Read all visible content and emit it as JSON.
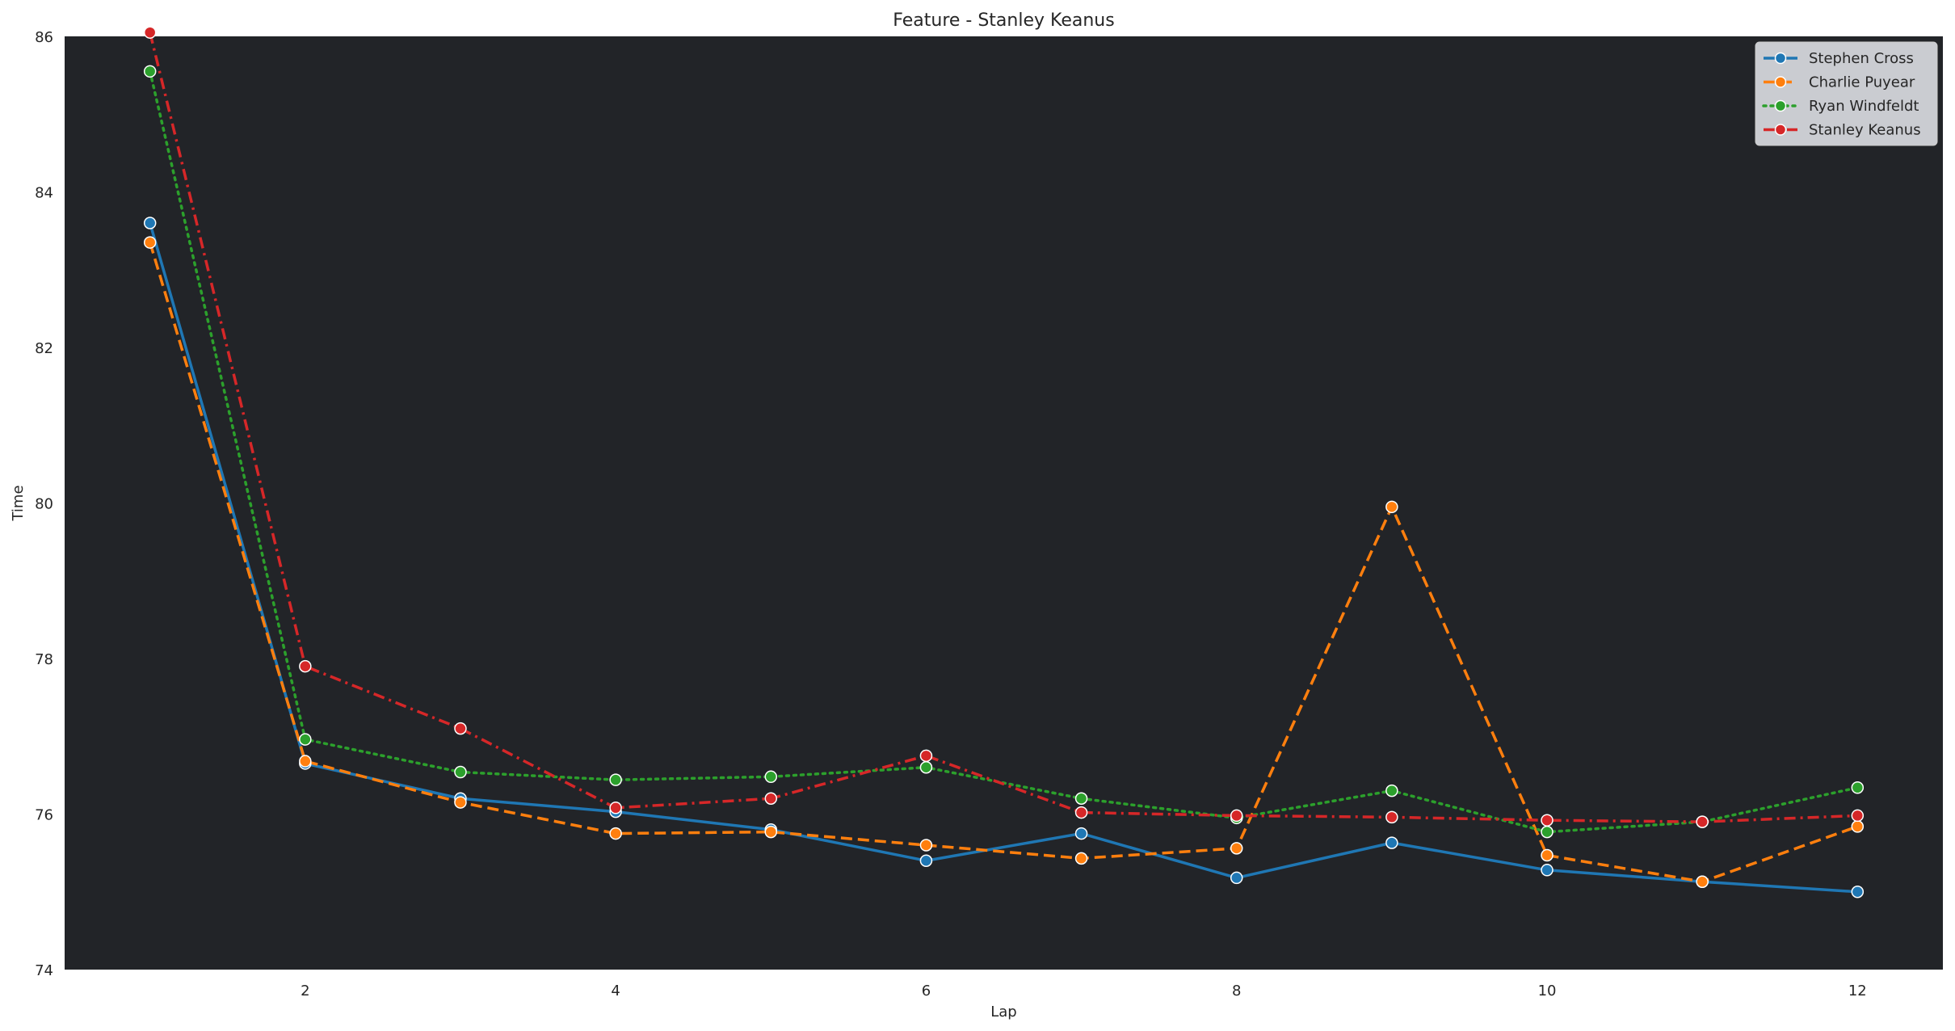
{
  "chart_data": {
    "type": "line",
    "title": "Feature - Stanley Keanus",
    "xlabel": "Lap",
    "ylabel": "Time",
    "xlim": [
      0.45,
      12.55
    ],
    "ylim": [
      74,
      86
    ],
    "xticks": [
      2,
      4,
      6,
      8,
      10,
      12
    ],
    "yticks": [
      74,
      76,
      78,
      80,
      82,
      84,
      86
    ],
    "grid": false,
    "legend_position": "top-right",
    "plot_background": "#222428",
    "x": [
      1,
      2,
      3,
      4,
      5,
      6,
      7,
      8,
      9,
      10,
      11,
      12
    ],
    "series": [
      {
        "name": "Stephen Cross",
        "color": "#1f77b4",
        "dash": "solid",
        "values": [
          83.6,
          76.65,
          76.2,
          76.03,
          75.8,
          75.4,
          75.75,
          75.18,
          75.63,
          75.28,
          75.13,
          75.0
        ]
      },
      {
        "name": "Charlie Puyear",
        "color": "#ff7f0e",
        "dash": "dashed",
        "values": [
          83.35,
          76.68,
          76.15,
          75.75,
          75.77,
          75.6,
          75.43,
          75.56,
          79.95,
          75.47,
          75.13,
          75.84
        ]
      },
      {
        "name": "Ryan Windfeldt",
        "color": "#2ca02c",
        "dash": "dotted",
        "values": [
          85.55,
          76.96,
          76.54,
          76.44,
          76.48,
          76.6,
          76.2,
          75.95,
          76.3,
          75.77,
          75.9,
          76.34
        ]
      },
      {
        "name": "Stanley Keanus",
        "color": "#d62728",
        "dash": "dashdot",
        "values": [
          86.05,
          77.9,
          77.1,
          76.08,
          76.2,
          76.75,
          76.02,
          75.98,
          75.96,
          75.92,
          75.9,
          75.98
        ]
      }
    ]
  }
}
